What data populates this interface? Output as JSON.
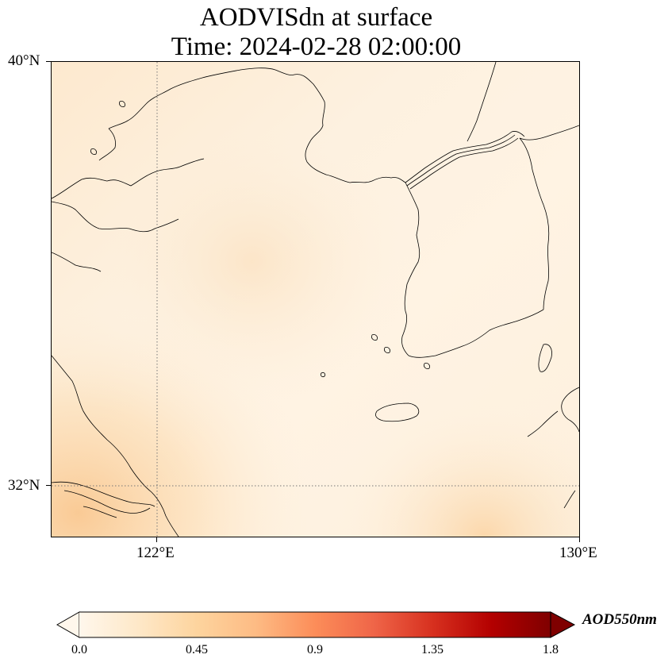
{
  "title": {
    "line1": "AODVISdn at surface",
    "line2": "Time: 2024-02-28 02:00:00"
  },
  "map": {
    "lat_labels": [
      "40°N",
      "32°N"
    ],
    "lon_labels": [
      "122°E",
      "130°E"
    ],
    "extent": {
      "lon_min": 120,
      "lon_max": 130,
      "lat_min": 31,
      "lat_max": 40
    },
    "gridlines": {
      "lon": [
        122
      ],
      "lat": [
        32
      ],
      "style": "dotted"
    },
    "field_colors": {
      "low": "#fff5eb",
      "mid": "#fdd9a8",
      "high": "#f7b879"
    }
  },
  "colorbar": {
    "label": "AOD550nm",
    "ticks": [
      "0.0",
      "0.45",
      "0.9",
      "1.35",
      "1.8"
    ],
    "range": [
      0.0,
      1.8
    ],
    "extend": "both",
    "colormap": "OrRd",
    "colors": [
      "#fff7ec",
      "#fee8c8",
      "#fdd49e",
      "#fdbb84",
      "#fc8d59",
      "#ef6548",
      "#d7301f",
      "#b30000",
      "#7f0000"
    ]
  }
}
